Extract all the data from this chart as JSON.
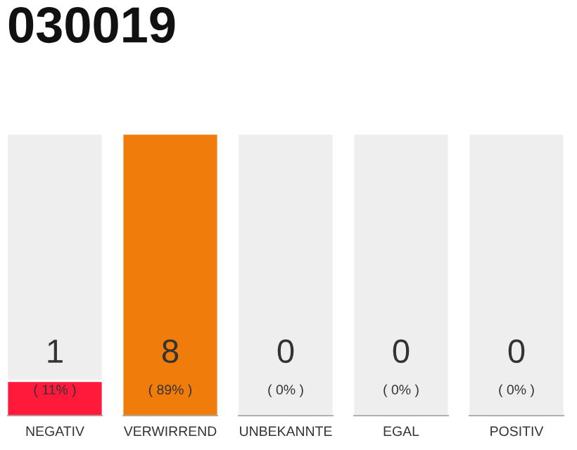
{
  "chart_data": {
    "type": "bar",
    "title": "030019",
    "categories": [
      "NEGATIV",
      "VERWIRREND",
      "UNBEKANNTE",
      "EGAL",
      "POSITIV"
    ],
    "series": [
      {
        "values": [
          8,
          null,
          8,
          8,
          8
        ],
        "color": "#eeeeee"
      },
      {
        "values": [
          1,
          8,
          0,
          0,
          0
        ],
        "colors": [
          "#ff1a3c",
          "#f07c0c",
          "#ff1a3c",
          "#ff1a3c",
          "#ff1a3c"
        ],
        "value_labels": [
          "1",
          "8",
          "0",
          "0",
          "0"
        ]
      }
    ],
    "annotations": [
      "( 11% )",
      "( 89% )",
      "( 0% )",
      "( 0% )",
      "( 0% )"
    ]
  }
}
